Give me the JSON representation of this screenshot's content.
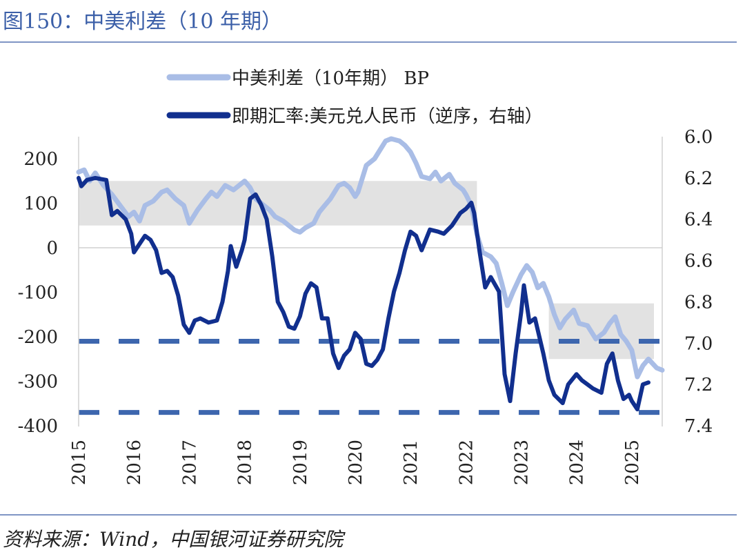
{
  "figure": {
    "title": "图150：中美利差（10 年期）",
    "source": "资料来源：Wind，中国银河证券研究院"
  },
  "chart_data": {
    "type": "line",
    "legend": [
      "中美利差（10年期） BP",
      "即期汇率:美元兑人民币（逆序，右轴）"
    ],
    "legend_placement": "top",
    "x_ticks": [
      "2015",
      "2016",
      "2017",
      "2018",
      "2019",
      "2020",
      "2021",
      "2022",
      "2023",
      "2024",
      "2025"
    ],
    "y_left": {
      "lim": [
        -400,
        250
      ],
      "ticks": [
        200,
        100,
        0,
        -100,
        -200,
        -300,
        -400
      ]
    },
    "y_right": {
      "lim": [
        6.0,
        7.4
      ],
      "ticks": [
        "6.0",
        "6.2",
        "6.4",
        "6.6",
        "6.8",
        "7.0",
        "7.2",
        "7.4"
      ],
      "inverted": true
    },
    "colors": {
      "spread": "#a9bde6",
      "fx": "#112f8e",
      "dashed": "#3d66ae",
      "band": "#e2e2e2"
    },
    "series": [
      {
        "name": "中美利差（10年期） BP",
        "axis": "left",
        "points": [
          [
            2015.0,
            170
          ],
          [
            2015.1,
            175
          ],
          [
            2015.2,
            150
          ],
          [
            2015.3,
            168
          ],
          [
            2015.45,
            140
          ],
          [
            2015.6,
            120
          ],
          [
            2015.75,
            95
          ],
          [
            2015.9,
            70
          ],
          [
            2016.0,
            80
          ],
          [
            2016.1,
            60
          ],
          [
            2016.2,
            95
          ],
          [
            2016.35,
            105
          ],
          [
            2016.5,
            125
          ],
          [
            2016.6,
            130
          ],
          [
            2016.75,
            110
          ],
          [
            2016.9,
            95
          ],
          [
            2017.0,
            55
          ],
          [
            2017.15,
            85
          ],
          [
            2017.3,
            110
          ],
          [
            2017.4,
            125
          ],
          [
            2017.5,
            115
          ],
          [
            2017.65,
            140
          ],
          [
            2017.8,
            130
          ],
          [
            2017.95,
            145
          ],
          [
            2018.0,
            150
          ],
          [
            2018.1,
            135
          ],
          [
            2018.2,
            110
          ],
          [
            2018.3,
            100
          ],
          [
            2018.45,
            85
          ],
          [
            2018.55,
            70
          ],
          [
            2018.7,
            60
          ],
          [
            2018.8,
            50
          ],
          [
            2018.9,
            40
          ],
          [
            2019.0,
            35
          ],
          [
            2019.1,
            45
          ],
          [
            2019.25,
            55
          ],
          [
            2019.35,
            80
          ],
          [
            2019.45,
            95
          ],
          [
            2019.55,
            110
          ],
          [
            2019.7,
            140
          ],
          [
            2019.8,
            145
          ],
          [
            2019.9,
            135
          ],
          [
            2020.0,
            115
          ],
          [
            2020.05,
            125
          ],
          [
            2020.2,
            185
          ],
          [
            2020.35,
            200
          ],
          [
            2020.45,
            220
          ],
          [
            2020.55,
            240
          ],
          [
            2020.65,
            245
          ],
          [
            2020.8,
            240
          ],
          [
            2020.9,
            230
          ],
          [
            2021.0,
            215
          ],
          [
            2021.1,
            190
          ],
          [
            2021.2,
            160
          ],
          [
            2021.35,
            155
          ],
          [
            2021.45,
            170
          ],
          [
            2021.55,
            150
          ],
          [
            2021.7,
            165
          ],
          [
            2021.8,
            145
          ],
          [
            2021.95,
            130
          ],
          [
            2022.0,
            120
          ],
          [
            2022.1,
            95
          ],
          [
            2022.2,
            30
          ],
          [
            2022.3,
            -10
          ],
          [
            2022.45,
            -20
          ],
          [
            2022.55,
            -35
          ],
          [
            2022.65,
            -80
          ],
          [
            2022.75,
            -130
          ],
          [
            2022.85,
            -100
          ],
          [
            2023.0,
            -60
          ],
          [
            2023.1,
            -40
          ],
          [
            2023.2,
            -55
          ],
          [
            2023.3,
            -90
          ],
          [
            2023.4,
            -80
          ],
          [
            2023.5,
            -110
          ],
          [
            2023.6,
            -150
          ],
          [
            2023.7,
            -180
          ],
          [
            2023.8,
            -160
          ],
          [
            2023.95,
            -140
          ],
          [
            2024.05,
            -170
          ],
          [
            2024.2,
            -175
          ],
          [
            2024.35,
            -205
          ],
          [
            2024.5,
            -190
          ],
          [
            2024.6,
            -170
          ],
          [
            2024.7,
            -155
          ],
          [
            2024.8,
            -195
          ],
          [
            2024.9,
            -210
          ],
          [
            2025.0,
            -230
          ],
          [
            2025.1,
            -290
          ],
          [
            2025.2,
            -265
          ],
          [
            2025.3,
            -250
          ],
          [
            2025.45,
            -270
          ],
          [
            2025.55,
            -275
          ]
        ]
      },
      {
        "name": "即期汇率:美元兑人民币（逆序，右轴）",
        "axis": "right",
        "points": [
          [
            2015.0,
            6.2
          ],
          [
            2015.05,
            6.24
          ],
          [
            2015.15,
            6.21
          ],
          [
            2015.3,
            6.2
          ],
          [
            2015.5,
            6.21
          ],
          [
            2015.6,
            6.38
          ],
          [
            2015.7,
            6.36
          ],
          [
            2015.85,
            6.4
          ],
          [
            2015.95,
            6.47
          ],
          [
            2016.0,
            6.56
          ],
          [
            2016.1,
            6.52
          ],
          [
            2016.2,
            6.48
          ],
          [
            2016.3,
            6.5
          ],
          [
            2016.4,
            6.55
          ],
          [
            2016.5,
            6.66
          ],
          [
            2016.6,
            6.65
          ],
          [
            2016.7,
            6.68
          ],
          [
            2016.8,
            6.77
          ],
          [
            2016.9,
            6.91
          ],
          [
            2017.0,
            6.95
          ],
          [
            2017.1,
            6.89
          ],
          [
            2017.2,
            6.88
          ],
          [
            2017.35,
            6.9
          ],
          [
            2017.5,
            6.89
          ],
          [
            2017.6,
            6.8
          ],
          [
            2017.7,
            6.65
          ],
          [
            2017.75,
            6.53
          ],
          [
            2017.85,
            6.63
          ],
          [
            2017.95,
            6.55
          ],
          [
            2018.0,
            6.5
          ],
          [
            2018.1,
            6.3
          ],
          [
            2018.2,
            6.28
          ],
          [
            2018.3,
            6.33
          ],
          [
            2018.4,
            6.4
          ],
          [
            2018.5,
            6.58
          ],
          [
            2018.6,
            6.8
          ],
          [
            2018.7,
            6.85
          ],
          [
            2018.8,
            6.92
          ],
          [
            2018.9,
            6.93
          ],
          [
            2019.0,
            6.87
          ],
          [
            2019.1,
            6.76
          ],
          [
            2019.2,
            6.71
          ],
          [
            2019.3,
            6.73
          ],
          [
            2019.4,
            6.88
          ],
          [
            2019.5,
            6.88
          ],
          [
            2019.6,
            7.05
          ],
          [
            2019.7,
            7.12
          ],
          [
            2019.8,
            7.06
          ],
          [
            2019.9,
            7.03
          ],
          [
            2020.0,
            6.95
          ],
          [
            2020.1,
            6.98
          ],
          [
            2020.2,
            7.1
          ],
          [
            2020.3,
            7.11
          ],
          [
            2020.4,
            7.08
          ],
          [
            2020.5,
            7.03
          ],
          [
            2020.6,
            6.88
          ],
          [
            2020.7,
            6.75
          ],
          [
            2020.8,
            6.66
          ],
          [
            2020.9,
            6.55
          ],
          [
            2021.0,
            6.46
          ],
          [
            2021.1,
            6.48
          ],
          [
            2021.2,
            6.55
          ],
          [
            2021.35,
            6.45
          ],
          [
            2021.5,
            6.46
          ],
          [
            2021.6,
            6.47
          ],
          [
            2021.75,
            6.43
          ],
          [
            2021.9,
            6.37
          ],
          [
            2022.0,
            6.35
          ],
          [
            2022.1,
            6.32
          ],
          [
            2022.15,
            6.37
          ],
          [
            2022.25,
            6.56
          ],
          [
            2022.35,
            6.73
          ],
          [
            2022.45,
            6.68
          ],
          [
            2022.6,
            6.75
          ],
          [
            2022.7,
            7.15
          ],
          [
            2022.8,
            7.28
          ],
          [
            2022.9,
            7.05
          ],
          [
            2023.0,
            6.85
          ],
          [
            2023.05,
            6.72
          ],
          [
            2023.15,
            6.9
          ],
          [
            2023.25,
            6.88
          ],
          [
            2023.4,
            7.05
          ],
          [
            2023.5,
            7.18
          ],
          [
            2023.6,
            7.25
          ],
          [
            2023.75,
            7.29
          ],
          [
            2023.85,
            7.2
          ],
          [
            2024.0,
            7.15
          ],
          [
            2024.1,
            7.18
          ],
          [
            2024.2,
            7.2
          ],
          [
            2024.3,
            7.22
          ],
          [
            2024.45,
            7.24
          ],
          [
            2024.55,
            7.1
          ],
          [
            2024.65,
            7.05
          ],
          [
            2024.75,
            7.18
          ],
          [
            2024.85,
            7.27
          ],
          [
            2024.95,
            7.25
          ],
          [
            2025.0,
            7.28
          ],
          [
            2025.1,
            7.32
          ],
          [
            2025.2,
            7.2
          ],
          [
            2025.3,
            7.19
          ]
        ]
      }
    ],
    "reference_lines_left": [
      -210,
      -370
    ],
    "bands": [
      {
        "x": [
          2015.0,
          2022.2
        ],
        "y": [
          50,
          150
        ]
      },
      {
        "x": [
          2023.5,
          2025.4
        ],
        "y": [
          -250,
          -125
        ]
      }
    ],
    "grid": false
  }
}
